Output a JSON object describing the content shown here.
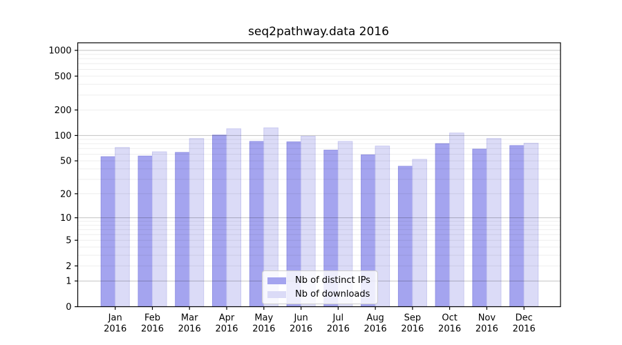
{
  "chart_data": {
    "type": "bar",
    "title": "seq2pathway.data 2016",
    "categories": [
      "Jan",
      "Feb",
      "Mar",
      "Apr",
      "May",
      "Jun",
      "Jul",
      "Aug",
      "Sep",
      "Oct",
      "Nov",
      "Dec"
    ],
    "category_year": "2016",
    "series": [
      {
        "name": "Nb of distinct IPs",
        "color": "#a4a4ef",
        "edge_color": "#9292e4",
        "values": [
          56,
          57,
          63,
          101,
          85,
          84,
          67,
          59,
          43,
          80,
          69,
          76
        ]
      },
      {
        "name": "Nb of downloads",
        "color": "#dbdbf7",
        "edge_color": "#c8c8f0",
        "values": [
          72,
          64,
          92,
          120,
          123,
          98,
          85,
          75,
          52,
          107,
          92,
          81
        ]
      }
    ],
    "yscale": "log1p",
    "yticks": [
      0,
      1,
      2,
      5,
      10,
      20,
      50,
      100,
      200,
      500,
      1000
    ],
    "ylim": [
      0,
      1200
    ],
    "xlabel": "",
    "ylabel": "",
    "grid": true,
    "grid_major_color": "rgba(0,0,0,0.24)",
    "grid_minor_color": "rgba(0,0,0,0.07)",
    "legend_position": "bottom-center",
    "text_color": "#000000",
    "axis_color": "#000000"
  }
}
